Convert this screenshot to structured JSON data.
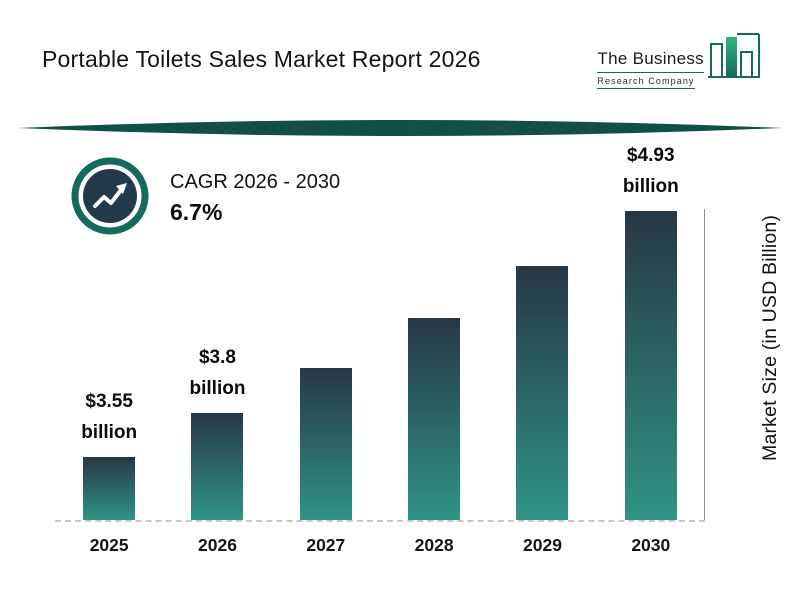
{
  "header": {
    "title": "Portable Toilets Sales Market Report 2026"
  },
  "logo": {
    "line1": "The Business",
    "line2": "Research Company"
  },
  "cagr": {
    "label": "CAGR 2026 - 2030",
    "value": "6.7%"
  },
  "chart_data": {
    "type": "bar",
    "title": "Portable Toilets Sales Market Report 2026",
    "categories": [
      "2025",
      "2026",
      "2027",
      "2028",
      "2029",
      "2030"
    ],
    "values": [
      3.55,
      3.8,
      4.05,
      4.33,
      4.62,
      4.93
    ],
    "value_labels": [
      {
        "line1": "$3.55",
        "line2": "billion"
      },
      {
        "line1": "$3.8",
        "line2": "billion"
      },
      null,
      null,
      null,
      {
        "line1": "$4.93",
        "line2": "billion"
      }
    ],
    "xlabel": "",
    "ylabel": "Market Size (in USD Billion)",
    "unit": "USD Billion",
    "ylim": [
      3.2,
      5.0
    ],
    "grid": false,
    "legend": false,
    "bar_gradient": [
      "#273743",
      "#2f9484"
    ]
  },
  "colors": {
    "accent_teal": "#156a5e",
    "logo_bar_fill": "#2aa381",
    "divider": "#134e48",
    "badge_inner": "#24394a",
    "axis_line": "#8f8f8f",
    "ink": "#111111"
  }
}
